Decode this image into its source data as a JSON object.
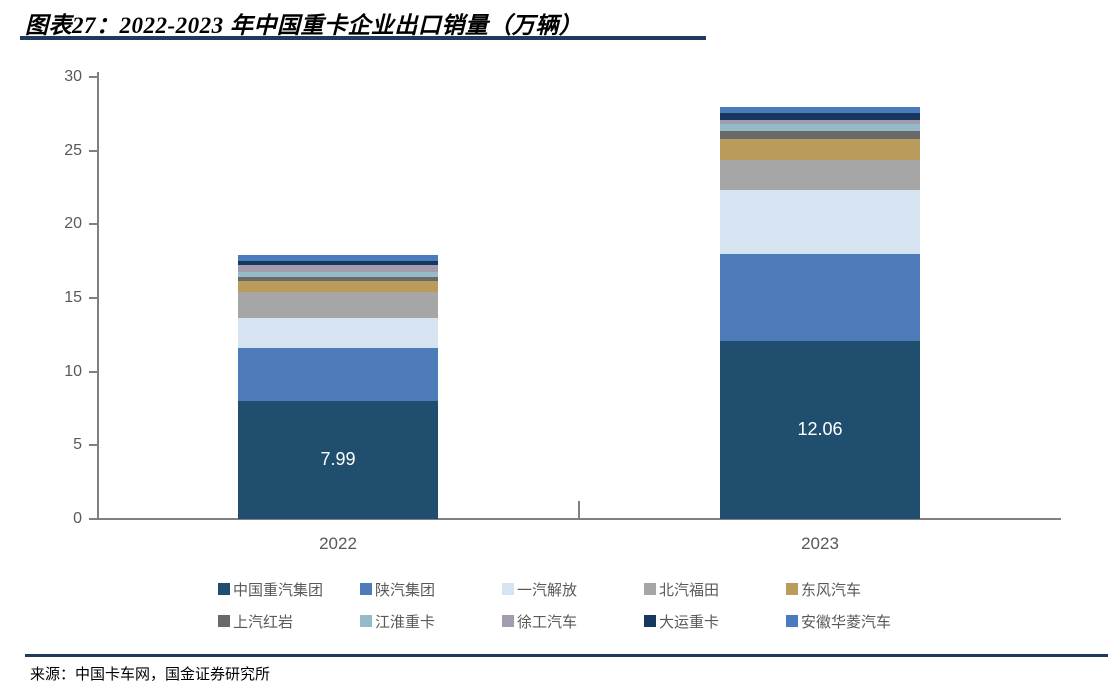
{
  "title": {
    "text": "图表27：2022-2023 年中国重卡企业出口销量（万辆）"
  },
  "source": {
    "text": "来源：中国卡车网，国金证券研究所"
  },
  "colors": {
    "rule_navy": "#1F3A5F",
    "axis_gray": "#808080",
    "label_gray": "#595959",
    "data_label_white": "#FFFFFF"
  },
  "chart_data": {
    "type": "bar",
    "stacked": true,
    "title": "图表27：2022-2023 年中国重卡企业出口销量（万辆）",
    "unit": "万辆",
    "categories": [
      "2022",
      "2023"
    ],
    "series": [
      {
        "name": "中国重汽集团",
        "color": "#1F4E6E",
        "values": [
          7.99,
          12.06
        ]
      },
      {
        "name": "陕汽集团",
        "color": "#4E7CB9",
        "values": [
          3.62,
          5.93
        ]
      },
      {
        "name": "一汽解放",
        "color": "#D6E3F0",
        "values": [
          2.04,
          4.35
        ]
      },
      {
        "name": "北汽福田",
        "color": "#A6A6A6",
        "values": [
          1.77,
          2.04
        ]
      },
      {
        "name": "东风汽车",
        "color": "#B99B5C",
        "values": [
          0.75,
          1.43
        ]
      },
      {
        "name": "上汽红岩",
        "color": "#696969",
        "values": [
          0.28,
          0.55
        ]
      },
      {
        "name": "江淮重卡",
        "color": "#96BBC8",
        "values": [
          0.35,
          0.48
        ]
      },
      {
        "name": "徐工汽车",
        "color": "#A39CAE",
        "values": [
          0.46,
          0.27
        ]
      },
      {
        "name": "大运重卡",
        "color": "#17375E",
        "values": [
          0.26,
          0.48
        ]
      },
      {
        "name": "安徽华菱汽车",
        "color": "#4A7BBD",
        "values": [
          0.41,
          0.41
        ]
      }
    ],
    "data_labels": [
      {
        "category_index": 0,
        "series_index": 0,
        "text": "7.99"
      },
      {
        "category_index": 1,
        "series_index": 0,
        "text": "12.06"
      }
    ],
    "y_axis": {
      "min": 0,
      "max": 30,
      "step": 5,
      "tick_labels": [
        "0",
        "5",
        "10",
        "15",
        "20",
        "25",
        "30"
      ]
    },
    "x_axis": {
      "tick_labels": [
        "2022",
        "2023"
      ]
    },
    "legend_position": "bottom",
    "legend_rows": [
      [
        "中国重汽集团",
        "陕汽集团",
        "一汽解放",
        "北汽福田",
        "东风汽车"
      ],
      [
        "上汽红岩",
        "江淮重卡",
        "徐工汽车",
        "大运重卡",
        "安徽华菱汽车"
      ]
    ],
    "grid": false
  }
}
